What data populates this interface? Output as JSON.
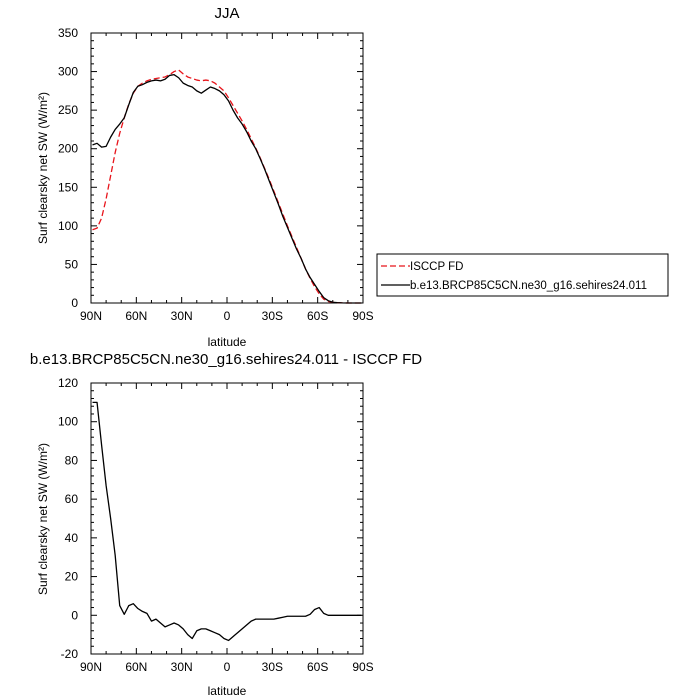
{
  "chart_data": [
    {
      "type": "line",
      "title": "JJA",
      "xlabel": "latitude",
      "ylabel": "Surf clearsky net SW (W/m²)",
      "xlim": [
        90,
        -90
      ],
      "ylim": [
        0,
        350
      ],
      "x_ticks": [
        90,
        60,
        30,
        0,
        -30,
        -60,
        -90
      ],
      "x_tick_labels": [
        "90N",
        "60N",
        "30N",
        "0",
        "30S",
        "60S",
        "90S"
      ],
      "y_ticks": [
        0,
        50,
        100,
        150,
        200,
        250,
        300,
        350
      ],
      "y_tick_labels": [
        "0",
        "50",
        "100",
        "150",
        "200",
        "250",
        "300",
        "350"
      ],
      "legend_position": "right-outside",
      "series": [
        {
          "name": "ISCCP FD",
          "color": "#e8141b",
          "dash": "dashed",
          "x": [
            89,
            86,
            83,
            80,
            77,
            74,
            71,
            68,
            65,
            62,
            59,
            56,
            53,
            50,
            47,
            44,
            41,
            38,
            35,
            32,
            29,
            26,
            23,
            20,
            17,
            14,
            11,
            8,
            5,
            2,
            -1,
            -4,
            -7,
            -10,
            -13,
            -16,
            -19,
            -22,
            -25,
            -28,
            -31,
            -34,
            -37,
            -40,
            -43,
            -46,
            -49,
            -52,
            -55,
            -58,
            -61,
            -64,
            -67,
            -70,
            -73,
            -76,
            -80,
            -85,
            -89
          ],
          "y": [
            95,
            97,
            110,
            135,
            165,
            195,
            220,
            240,
            258,
            272,
            281,
            285,
            288,
            290,
            291,
            292,
            293,
            296,
            300,
            302,
            297,
            293,
            291,
            289,
            288,
            289,
            288,
            285,
            280,
            275,
            266,
            256,
            246,
            236,
            225,
            213,
            201,
            188,
            174,
            160,
            145,
            130,
            115,
            100,
            86,
            72,
            58,
            44,
            32,
            21,
            12,
            5,
            2,
            1,
            0.5,
            0.2,
            0,
            0,
            0
          ]
        },
        {
          "name": "b.e13.BRCP85C5CN.ne30_g16.sehires24.011",
          "color": "#000000",
          "dash": "solid",
          "x": [
            89,
            86,
            83,
            80,
            77,
            74,
            71,
            68,
            65,
            62,
            59,
            56,
            53,
            50,
            47,
            44,
            41,
            38,
            35,
            32,
            29,
            26,
            23,
            20,
            17,
            14,
            11,
            8,
            5,
            2,
            -1,
            -4,
            -7,
            -10,
            -13,
            -16,
            -19,
            -22,
            -25,
            -28,
            -31,
            -34,
            -37,
            -40,
            -43,
            -46,
            -49,
            -52,
            -55,
            -58,
            -61,
            -64,
            -67,
            -70,
            -73,
            -76,
            -80,
            -85,
            -89
          ],
          "y": [
            205,
            207,
            202,
            203,
            215,
            225,
            232,
            240,
            257,
            273,
            281,
            283,
            286,
            288,
            289,
            288,
            290,
            295,
            296,
            292,
            285,
            282,
            280,
            275,
            272,
            276,
            280,
            278,
            275,
            270,
            262,
            250,
            240,
            232,
            222,
            210,
            200,
            187,
            173,
            158,
            143,
            128,
            112,
            98,
            84,
            70,
            58,
            44,
            33,
            24,
            15,
            7,
            3,
            1,
            0.5,
            0.2,
            0,
            0,
            0
          ]
        }
      ]
    },
    {
      "type": "line",
      "title": "b.e13.BRCP85C5CN.ne30_g16.sehires24.011 - ISCCP FD",
      "xlabel": "latitude",
      "ylabel": "Surf clearsky net SW (W/m²)",
      "xlim": [
        90,
        -90
      ],
      "ylim": [
        -20,
        120
      ],
      "x_ticks": [
        90,
        60,
        30,
        0,
        -30,
        -60,
        -90
      ],
      "x_tick_labels": [
        "90N",
        "60N",
        "30N",
        "0",
        "30S",
        "60S",
        "90S"
      ],
      "y_ticks": [
        -20,
        0,
        20,
        40,
        60,
        80,
        100,
        120
      ],
      "y_tick_labels": [
        "-20",
        "0",
        "20",
        "40",
        "60",
        "80",
        "100",
        "120"
      ],
      "series": [
        {
          "name": "",
          "color": "#000000",
          "dash": "solid",
          "x": [
            89,
            86,
            83,
            80,
            77,
            74,
            71,
            68,
            65,
            62,
            59,
            56,
            53,
            50,
            47,
            44,
            41,
            38,
            35,
            32,
            29,
            26,
            23,
            20,
            17,
            14,
            11,
            8,
            5,
            2,
            -1,
            -4,
            -7,
            -10,
            -13,
            -16,
            -19,
            -22,
            -25,
            -28,
            -31,
            -34,
            -37,
            -40,
            -43,
            -46,
            -49,
            -52,
            -55,
            -58,
            -61,
            -64,
            -67,
            -70,
            -73,
            -76,
            -80,
            -85,
            -89
          ],
          "y": [
            110,
            110,
            88,
            67,
            50,
            31,
            5,
            0.5,
            5,
            6,
            3.5,
            2,
            1,
            -3,
            -2,
            -4,
            -6,
            -5,
            -4,
            -5,
            -7,
            -10,
            -12,
            -8,
            -7,
            -7,
            -8,
            -9,
            -10,
            -12,
            -13,
            -11,
            -9,
            -7,
            -5,
            -3,
            -2,
            -2,
            -2,
            -2,
            -2,
            -1.5,
            -1,
            -0.5,
            -0.5,
            -0.5,
            -0.5,
            -0.5,
            0.5,
            3,
            4,
            1,
            0,
            0,
            0,
            0,
            0,
            0,
            0
          ]
        }
      ]
    }
  ]
}
